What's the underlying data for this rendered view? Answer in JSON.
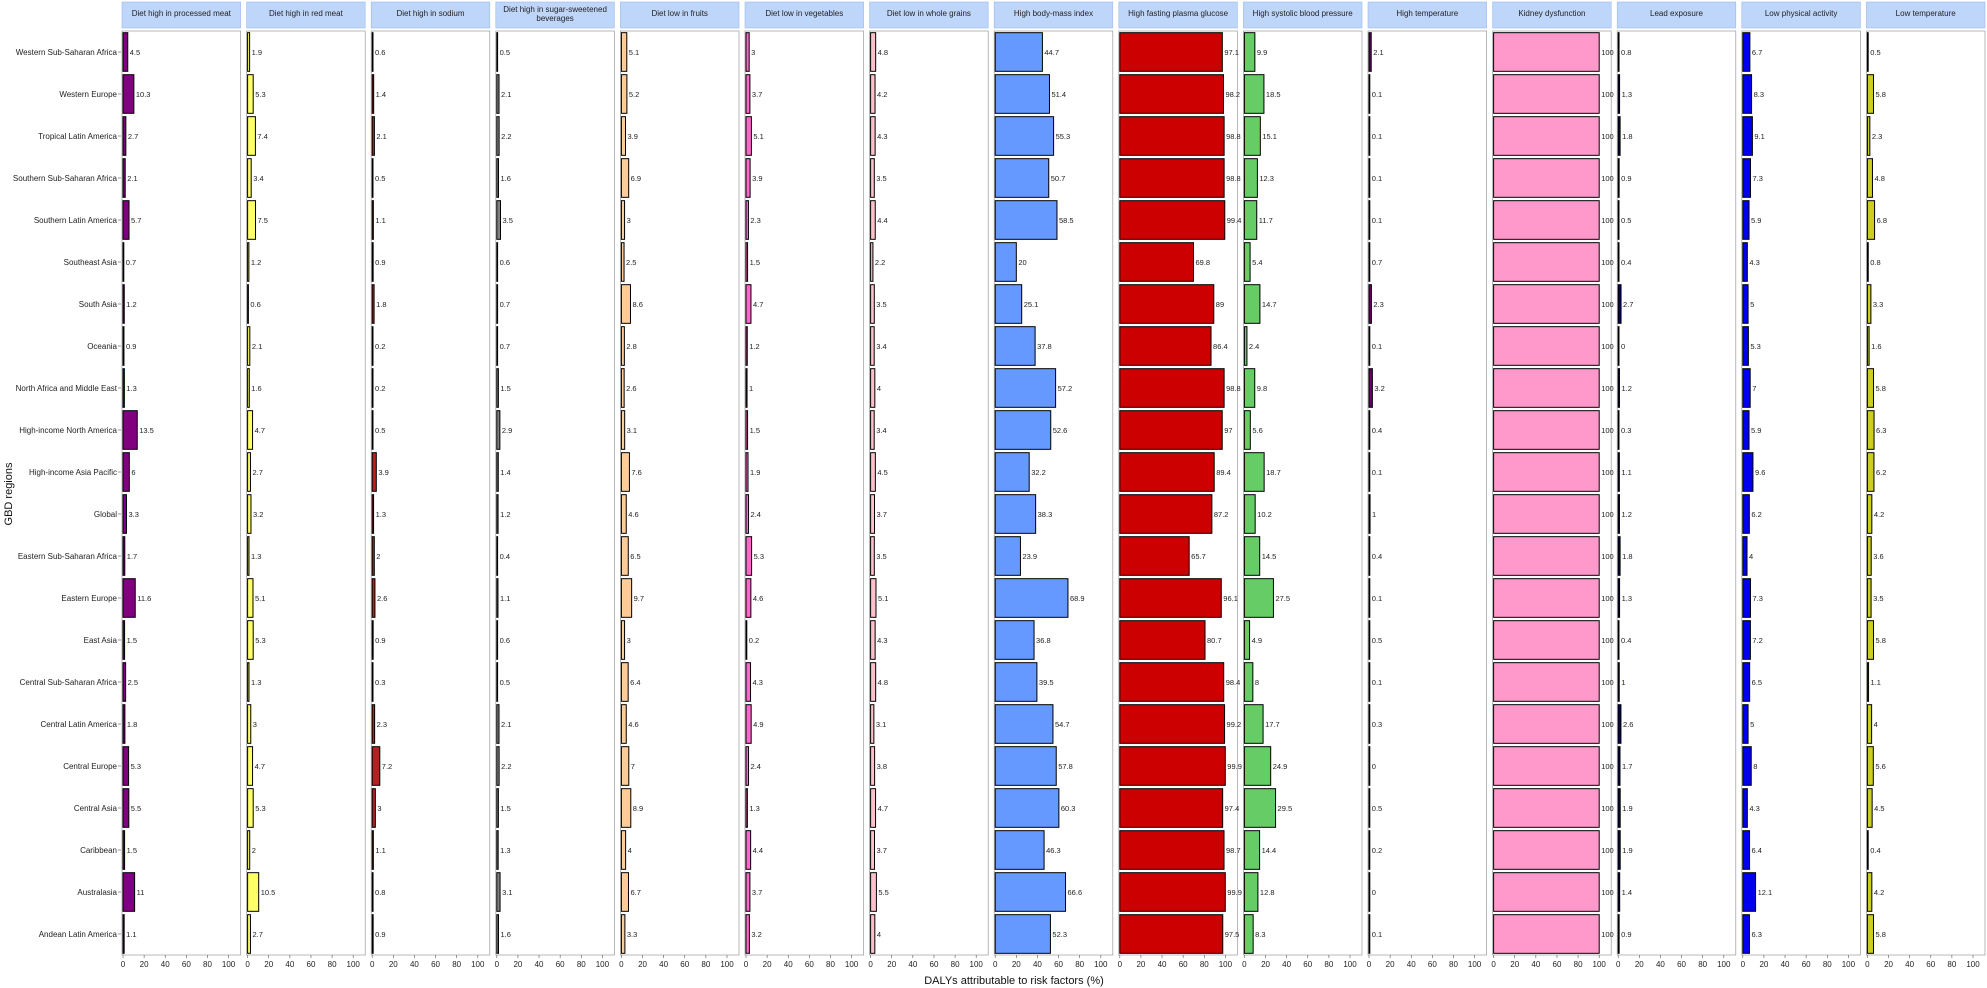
{
  "chart_data": {
    "type": "bar",
    "orientation": "horizontal",
    "xlabel": "DALYs attributable to risk factors (%)",
    "ylabel": "GBD regions",
    "xlim": [
      0,
      100
    ],
    "xticks": [
      0,
      20,
      40,
      60,
      80,
      100
    ],
    "grid": false,
    "regions": [
      "Western Sub-Saharan Africa",
      "Western Europe",
      "Tropical Latin America",
      "Southern Sub-Saharan Africa",
      "Southern Latin America",
      "Southeast Asia",
      "South Asia",
      "Oceania",
      "North Africa and Middle East",
      "High-income North America",
      "High-income Asia Pacific",
      "Global",
      "Eastern Sub-Saharan Africa",
      "Eastern Europe",
      "East Asia",
      "Central Sub-Saharan Africa",
      "Central Latin America",
      "Central Europe",
      "Central Asia",
      "Caribbean",
      "Australasia",
      "Andean Latin America"
    ],
    "panels": [
      {
        "title": "Diet high in processed meat",
        "color": "#800080",
        "values": [
          4.5,
          10.3,
          2.7,
          2.1,
          5.7,
          0.7,
          1.2,
          0.9,
          1.3,
          13.5,
          6,
          3.3,
          1.7,
          11.6,
          1.5,
          2.5,
          1.8,
          5.3,
          5.5,
          1.5,
          11,
          1.1
        ]
      },
      {
        "title": "Diet high in red meat",
        "color": "#ffff66",
        "values": [
          1.9,
          5.3,
          7.4,
          3.4,
          7.5,
          1.2,
          0.6,
          2.1,
          1.6,
          4.7,
          2.7,
          3.2,
          1.3,
          5.1,
          5.3,
          1.3,
          3,
          4.7,
          5.3,
          2,
          10.5,
          2.7
        ]
      },
      {
        "title": "Diet high in sodium",
        "color": "#b22222",
        "values": [
          0.6,
          1.4,
          2.1,
          0.5,
          1.1,
          0.9,
          1.8,
          0.2,
          0.2,
          0.5,
          3.9,
          1.3,
          2,
          2.6,
          0.9,
          0.3,
          2.3,
          7.2,
          3,
          1.1,
          0.8,
          0.9
        ]
      },
      {
        "title": "Diet high in sugar-sweetened beverages",
        "color": "#808080",
        "values": [
          0.5,
          2.1,
          2.2,
          1.6,
          3.5,
          0.6,
          0.7,
          0.7,
          1.5,
          2.9,
          1.4,
          1.2,
          0.4,
          1.1,
          0.6,
          0.5,
          2.1,
          2.2,
          1.5,
          1.3,
          3.1,
          1.6
        ]
      },
      {
        "title": "Diet low in fruits",
        "color": "#ffcc99",
        "values": [
          5.1,
          5.2,
          3.9,
          6.9,
          3,
          2.5,
          8.6,
          2.8,
          2.6,
          3.1,
          7.6,
          4.6,
          6.5,
          9.7,
          3,
          6.4,
          4.6,
          7,
          8.9,
          4,
          6.7,
          3.3
        ]
      },
      {
        "title": "Diet low in vegetables",
        "color": "#ff66cc",
        "values": [
          3,
          3.7,
          5.1,
          3.9,
          2.3,
          1.5,
          4.7,
          1.2,
          1,
          1.5,
          1.9,
          2.4,
          5.3,
          4.6,
          0.2,
          4.3,
          4.9,
          2.4,
          1.3,
          4.4,
          3.7,
          3.2
        ]
      },
      {
        "title": "Diet low in whole grains",
        "color": "#ffc0cb",
        "values": [
          4.8,
          4.2,
          4.3,
          3.5,
          4.4,
          2.2,
          3.5,
          3.4,
          4,
          3.4,
          4.5,
          3.7,
          3.5,
          5.1,
          4.3,
          4.8,
          3.1,
          3.8,
          4.7,
          3.7,
          5.5,
          4
        ]
      },
      {
        "title": "High body-mass index",
        "color": "#6699ff",
        "values": [
          44.7,
          51.4,
          55.3,
          50.7,
          58.5,
          20,
          25.1,
          37.8,
          57.2,
          52.6,
          32.2,
          38.3,
          23.9,
          68.9,
          36.8,
          39.5,
          54.7,
          57.8,
          60.3,
          46.3,
          66.6,
          52.3
        ]
      },
      {
        "title": "High fasting plasma glucose",
        "color": "#cc0000",
        "values": [
          97.1,
          98.2,
          98.8,
          98.8,
          99.4,
          69.8,
          89,
          86.4,
          98.8,
          97,
          89.4,
          87.2,
          65.7,
          96.1,
          80.7,
          98.4,
          99.2,
          99.9,
          97.4,
          98.7,
          99.9,
          97.5
        ]
      },
      {
        "title": "High systolic blood pressure",
        "color": "#66cc66",
        "values": [
          9.9,
          18.5,
          15.1,
          12.3,
          11.7,
          5.4,
          14.7,
          2.4,
          9.8,
          5.6,
          18.7,
          10.2,
          14.5,
          27.5,
          4.9,
          8,
          17.7,
          24.9,
          29.5,
          14.4,
          12.8,
          8.3
        ]
      },
      {
        "title": "High temperature",
        "color": "#660066",
        "values": [
          2.1,
          0.1,
          0.1,
          0.1,
          0.1,
          0.7,
          2.3,
          0.1,
          3.2,
          0.4,
          0.1,
          1,
          0.4,
          0.1,
          0.5,
          0.1,
          0.3,
          0,
          0.5,
          0.2,
          0,
          0.1
        ]
      },
      {
        "title": "Kidney dysfunction",
        "color": "#ff99cc",
        "values": [
          100,
          100,
          100,
          100,
          100,
          100,
          100,
          100,
          100,
          100,
          100,
          100,
          100,
          100,
          100,
          100,
          100,
          100,
          100,
          100,
          100,
          100
        ]
      },
      {
        "title": "Lead exposure",
        "color": "#000066",
        "values": [
          0.8,
          1.3,
          1.8,
          0.9,
          0.5,
          0.4,
          2.7,
          0,
          1.2,
          0.3,
          1.1,
          1.2,
          1.8,
          1.3,
          0.4,
          1,
          2.6,
          1.7,
          1.9,
          1.9,
          1.4,
          0.9
        ]
      },
      {
        "title": "Low physical activity",
        "color": "#0000ee",
        "values": [
          6.7,
          8.3,
          9.1,
          7.3,
          5.9,
          4.3,
          5,
          5.3,
          7,
          5.9,
          9.6,
          6.2,
          4,
          7.3,
          7.2,
          6.5,
          5,
          8,
          4.3,
          6.4,
          12.1,
          6.3
        ]
      },
      {
        "title": "Low temperature",
        "color": "#cccc22",
        "values": [
          0.5,
          5.8,
          2.3,
          4.8,
          6.8,
          0.8,
          3.3,
          1.6,
          5.8,
          6.3,
          6.2,
          4.2,
          3.6,
          3.5,
          5.8,
          1.1,
          4,
          5.6,
          4.5,
          0.4,
          4.2,
          5.8
        ]
      }
    ]
  }
}
